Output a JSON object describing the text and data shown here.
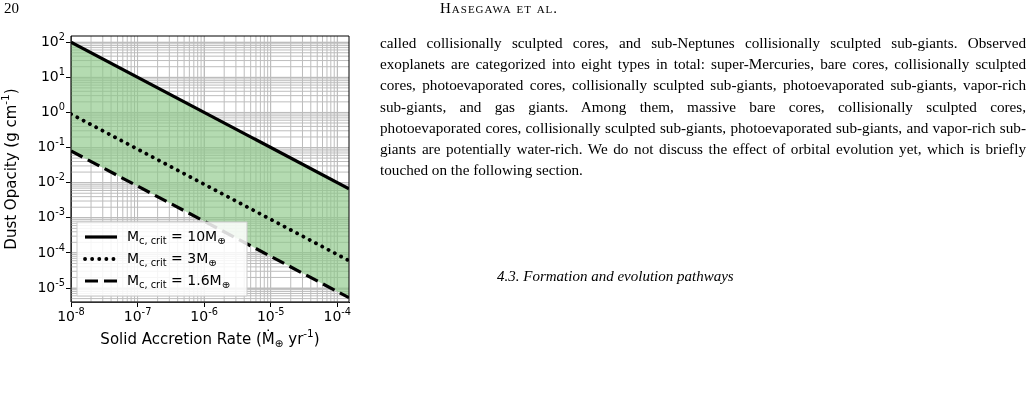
{
  "chart_data": {
    "type": "line",
    "xlabel": "Solid Accretion Rate (Ṁ$_{⊕}$ yr$^{-1}$)",
    "ylabel": "Dust Opacity (g cm$^{-1}$)",
    "log": "xy",
    "grid": true,
    "legend": "bottom left",
    "x": [
      1e-08,
      0.00015
    ],
    "xlim": [
      1e-08,
      0.00015
    ],
    "ylim": [
      4e-06,
      150
    ],
    "xticks": [
      {
        "value": 1e-08,
        "label": "10$^{-8}$"
      },
      {
        "value": 1e-07,
        "label": "10$^{-7}$"
      },
      {
        "value": 1e-06,
        "label": "10$^{-6}$"
      },
      {
        "value": 1e-05,
        "label": "10$^{-5}$"
      },
      {
        "value": 0.0001,
        "label": "10$^{-4}$"
      }
    ],
    "yticks": [
      {
        "value": 1e-05,
        "label": "10$^{-5}$"
      },
      {
        "value": 0.0001,
        "label": "10$^{-4}$"
      },
      {
        "value": 0.001,
        "label": "10$^{-3}$"
      },
      {
        "value": 0.01,
        "label": "10$^{-2}$"
      },
      {
        "value": 0.1,
        "label": "10$^{-1}$"
      },
      {
        "value": 1,
        "label": "10$^{0}$"
      },
      {
        "value": 10,
        "label": "10$^{1}$"
      },
      {
        "value": 100,
        "label": "10$^{2}$"
      }
    ],
    "series": [
      {
        "name": "M$_{c, crit}$ = 10M$_{⊕}$",
        "color": "#000000",
        "line_style": "solid",
        "values": [
          100,
          0.0067
        ]
      },
      {
        "name": "M$_{c, crit}$ = 3M$_{⊕}$",
        "color": "#000000",
        "line_style": "dotted",
        "values": [
          0.9,
          6e-05
        ],
        "lower": [
          0.08,
          5.3e-06
        ],
        "upper": [
          100,
          0.0067
        ]
      },
      {
        "name": "M$_{c, crit}$ = 1.6M$_{⊕}$",
        "color": "#000000",
        "line_style": "dashed",
        "values": [
          0.08,
          5.3e-06
        ]
      }
    ],
    "annotations": [
      "20",
      "Hasegawa et al.",
      "called collisionally sculpted cores, and sub-Neptunes collisionally sculpted sub-giants. Observed exoplanets are categorized into eight types in total: super-Mercuries, bare cores, collisionally sculpted cores, photoevaporated cores, collisionally sculpted sub-giants, photoevaporated sub-giants, vapor-rich sub-giants, and gas giants. Among them, massive bare cores, collisionally sculpted cores, photoevaporated cores, collisionally sculpted sub-giants, photoevaporated sub-giants, and vapor-rich sub-giants are potentially water-rich. We do not discuss the effect of orbital evolution yet, which is briefly touched on the following section.",
      "4.3. Formation and evolution pathways"
    ]
  }
}
